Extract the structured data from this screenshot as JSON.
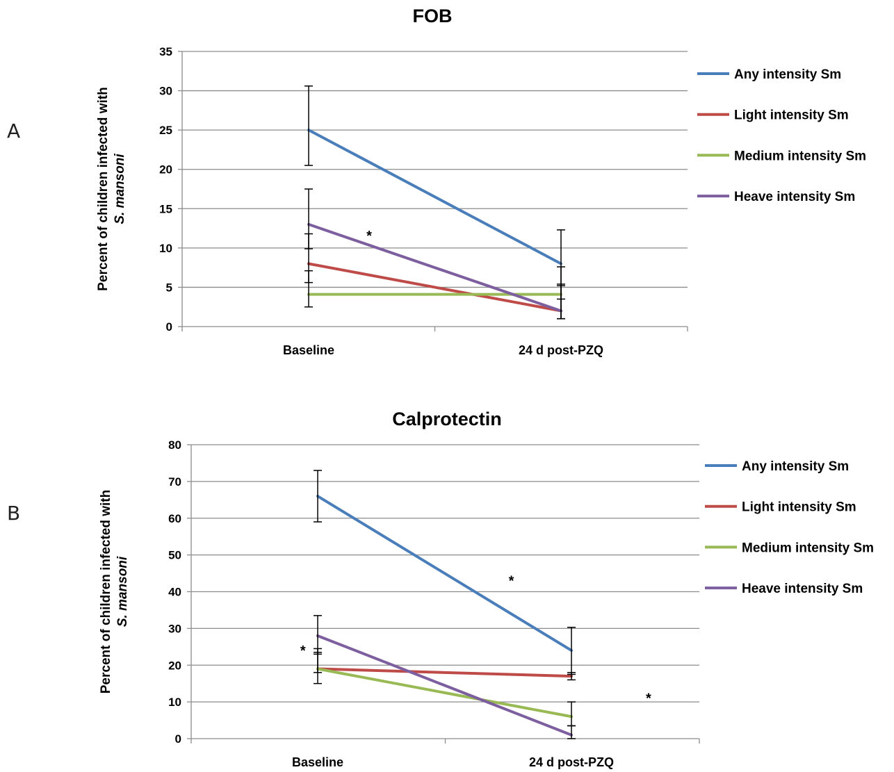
{
  "figure": {
    "panels": [
      "A",
      "B"
    ]
  },
  "chart_data": [
    {
      "type": "line",
      "panel": "A",
      "title": "FOB",
      "ylabel_line1": "Percent of children infected with",
      "ylabel_line2": "S. mansoni",
      "categories": [
        "Baseline",
        "24 d post-PZQ"
      ],
      "ylim": [
        0,
        35
      ],
      "yticks": [
        0,
        5,
        10,
        15,
        20,
        25,
        30,
        35
      ],
      "grid": true,
      "legend_position": "right",
      "series": [
        {
          "name": "Any intensity Sm",
          "color": "#4a7ebb",
          "values": [
            25,
            8
          ],
          "err_low": [
            20.5,
            3.5
          ],
          "err_high": [
            30.6,
            12.3
          ]
        },
        {
          "name": "Light intensity Sm",
          "color": "#be4b48",
          "values": [
            8,
            2
          ],
          "err_low": [
            5.6,
            1
          ],
          "err_high": [
            11.8,
            5.2
          ]
        },
        {
          "name": "Medium intensity Sm",
          "color": "#98b954",
          "values": [
            4.1,
            4.1
          ],
          "err_low": [
            2.5,
            1
          ],
          "err_high": [
            7.1,
            7.6
          ]
        },
        {
          "name": "Heave intensity Sm",
          "color": "#7d5fa0",
          "values": [
            13,
            2
          ],
          "err_low": [
            9.9,
            1
          ],
          "err_high": [
            17.5,
            5.4
          ]
        }
      ],
      "annotations": [
        {
          "text": "*",
          "x": 0.37,
          "y": 12
        }
      ]
    },
    {
      "type": "line",
      "panel": "B",
      "title": "Calprotectin",
      "ylabel_line1": "Percent of children infected with",
      "ylabel_line2": "S. mansoni",
      "categories": [
        "Baseline",
        "24 d post-PZQ"
      ],
      "ylim": [
        0,
        80
      ],
      "yticks": [
        0,
        10,
        20,
        30,
        40,
        50,
        60,
        70,
        80
      ],
      "grid": true,
      "legend_position": "right",
      "series": [
        {
          "name": "Any intensity Sm",
          "color": "#4a7ebb",
          "values": [
            66,
            24
          ],
          "err_low": [
            59,
            17.5
          ],
          "err_high": [
            73,
            30.3
          ]
        },
        {
          "name": "Light intensity Sm",
          "color": "#be4b48",
          "values": [
            19,
            17
          ],
          "err_low": [
            15,
            16
          ],
          "err_high": [
            23.5,
            18
          ]
        },
        {
          "name": "Medium intensity Sm",
          "color": "#98b954",
          "values": [
            19,
            6
          ],
          "err_low": [
            18,
            3.5
          ],
          "err_high": [
            24.5,
            10
          ]
        },
        {
          "name": "Heave intensity Sm",
          "color": "#7d5fa0",
          "values": [
            28,
            1
          ],
          "err_low": [
            23,
            0
          ],
          "err_high": [
            33.5,
            3.5
          ]
        }
      ],
      "annotations": [
        {
          "text": "*",
          "x": 0.63,
          "y": 44
        },
        {
          "text": "*",
          "x": 0.22,
          "y": 25
        },
        {
          "text": "*",
          "x": 0.9,
          "y": 12
        }
      ]
    }
  ]
}
